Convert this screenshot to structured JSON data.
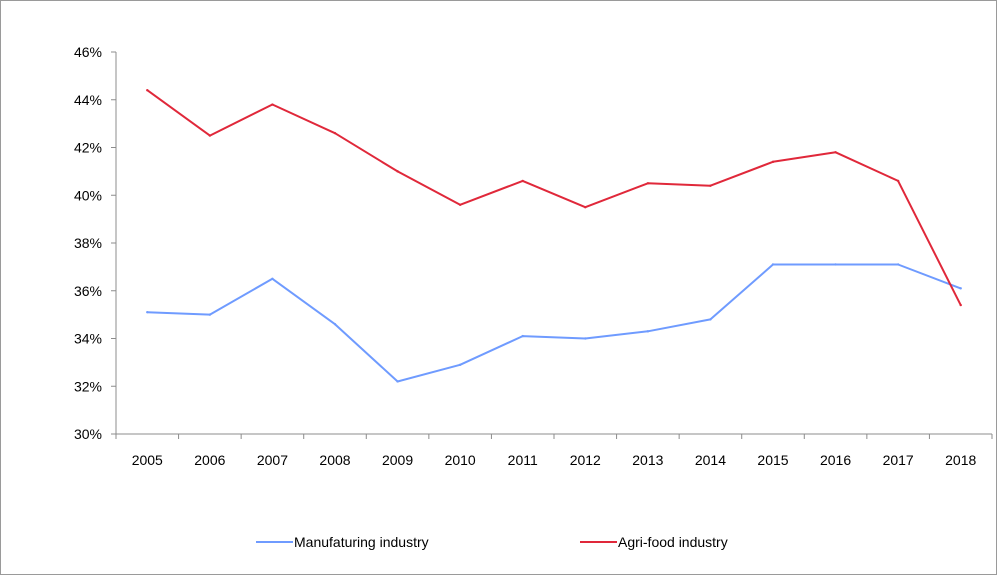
{
  "chart_data": {
    "type": "line",
    "title": "",
    "xlabel": "",
    "ylabel": "",
    "categories": [
      "2005",
      "2006",
      "2007",
      "2008",
      "2009",
      "2010",
      "2011",
      "2012",
      "2013",
      "2014",
      "2015",
      "2016",
      "2017",
      "2018"
    ],
    "ylim": [
      0.3,
      0.46
    ],
    "y_ticks": [
      0.3,
      0.32,
      0.34,
      0.36,
      0.38,
      0.4,
      0.42,
      0.44,
      0.46
    ],
    "y_tick_labels": [
      "30%",
      "32%",
      "34%",
      "36%",
      "38%",
      "40%",
      "42%",
      "44%",
      "46%"
    ],
    "y_format": "percent",
    "grid": false,
    "legend_position": "bottom",
    "series": [
      {
        "name": "Manufaturing industry",
        "color": "#6f9bff",
        "values": [
          0.351,
          0.35,
          0.365,
          0.346,
          0.322,
          0.329,
          0.341,
          0.34,
          0.343,
          0.348,
          0.371,
          0.371,
          0.371,
          0.361
        ]
      },
      {
        "name": "Agri-food industry",
        "color": "#e0283a",
        "values": [
          0.444,
          0.425,
          0.438,
          0.426,
          0.41,
          0.396,
          0.406,
          0.395,
          0.405,
          0.404,
          0.414,
          0.418,
          0.406,
          0.354
        ]
      }
    ]
  }
}
